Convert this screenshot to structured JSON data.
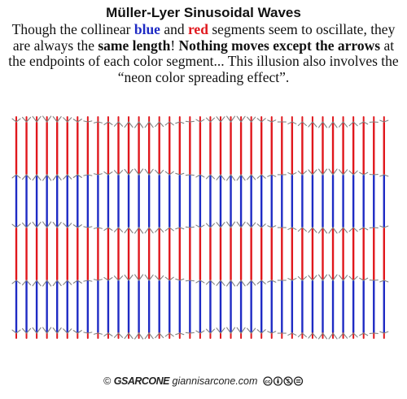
{
  "title": "Müller-Lyer Sinusoidal Waves",
  "description": {
    "p1": "Though the collinear ",
    "blue_word": "blue",
    "p2": " and ",
    "red_word": "red",
    "p3": " segments seem to oscillate, they are always the ",
    "bold1": "same length",
    "p4": "! ",
    "bold2": "Nothing moves except the arrows",
    "p5": " at the endpoints of each color segment... This illusion also involves the “neon color spreading effect”."
  },
  "footer": {
    "copyright": "©",
    "signature": "GSARCONE",
    "site": "giannisarcone.com",
    "license_icons": [
      "cc-icon",
      "by-icon",
      "nc-icon",
      "nd-icon"
    ]
  },
  "colors": {
    "blue": "#1f2bc4",
    "red": "#e0171d",
    "arrow": "#808080",
    "text": "#111111"
  }
}
